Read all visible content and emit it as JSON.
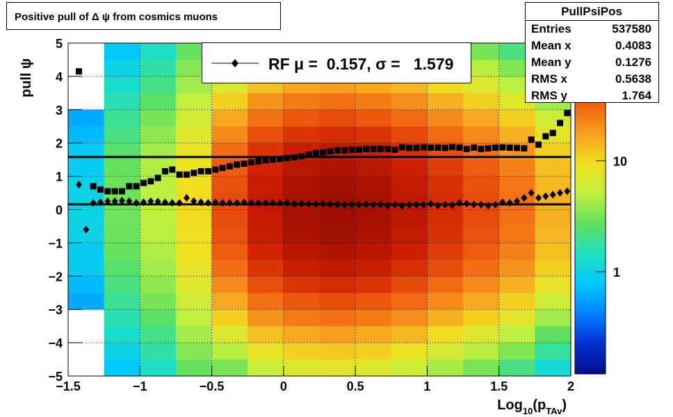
{
  "chart_data": {
    "type": "heatmap-profile",
    "title": "Positive pull of Δ ψ from cosmics muons",
    "y_label": "pull ψ",
    "x_label": {
      "base": "Log",
      "sub": "10",
      "mid": "(p",
      "sub2": "TAv",
      "end": ")"
    },
    "xlim": [
      -1.5,
      2
    ],
    "ylim": [
      -5,
      5
    ],
    "xticks": [
      {
        "value": -1.5,
        "label": "−1.5"
      },
      {
        "value": -1,
        "label": "−1"
      },
      {
        "value": -0.5,
        "label": "−0.5"
      },
      0,
      0.5,
      1,
      1.5,
      2
    ],
    "yticks": [
      {
        "value": -5,
        "label": "−5"
      },
      {
        "value": -4,
        "label": "−4"
      },
      {
        "value": -3,
        "label": "−3"
      },
      {
        "value": -2,
        "label": "−2"
      },
      {
        "value": -1,
        "label": "−1"
      },
      0,
      1,
      2,
      3,
      4,
      5
    ],
    "grid": true,
    "zlog": true,
    "zlim": [
      0.12,
      115
    ],
    "zticks": [
      1,
      10
    ],
    "palette": [
      "#0a0a8c",
      "#0030d0",
      "#0080ff",
      "#00c8ff",
      "#20e0c0",
      "#60e060",
      "#c0f040",
      "#f0e020",
      "#f8a020",
      "#f06010",
      "#d02000",
      "#8c0a00"
    ],
    "heatmap": {
      "xbins": [
        -1.5,
        -1.25,
        -1,
        -0.75,
        -0.5,
        -0.25,
        0,
        0.25,
        0.5,
        0.75,
        1,
        1.25,
        1.5,
        1.75,
        2
      ],
      "ybins": [
        -5,
        -4.5,
        -4,
        -3.5,
        -3,
        -2.5,
        -2,
        -1.5,
        -1,
        -0.5,
        0,
        0.5,
        1,
        1.5,
        2,
        2.5,
        3,
        3.5,
        4,
        4.5,
        5
      ],
      "z": [
        [
          0,
          0,
          0,
          0,
          0.6,
          0.7,
          0.9,
          0.9,
          1,
          1,
          1,
          1,
          0.9,
          0.9,
          0.7,
          0.6,
          0,
          0,
          0,
          0
        ],
        [
          0.8,
          1,
          1.3,
          1.6,
          1.9,
          2.2,
          2.5,
          2.8,
          2.9,
          3,
          3,
          2.9,
          2.8,
          2.5,
          2.2,
          1.9,
          1.6,
          1.3,
          1,
          0.8
        ],
        [
          1.4,
          1.7,
          2.1,
          2.6,
          3.2,
          3.7,
          4.2,
          4.6,
          4.9,
          5,
          5,
          4.9,
          4.6,
          4.2,
          3.7,
          3.2,
          2.6,
          2.1,
          1.7,
          1.4
        ],
        [
          2.8,
          3.5,
          4.2,
          5.3,
          6.3,
          7.4,
          8.5,
          9.2,
          9.7,
          10,
          10,
          9.7,
          9.2,
          8.5,
          7.4,
          6.3,
          5.3,
          4.2,
          3.5,
          2.8
        ],
        [
          3.2,
          4.8,
          7.2,
          11,
          16,
          22,
          29,
          34,
          38,
          40,
          40,
          38,
          34,
          29,
          22,
          16,
          11,
          7.2,
          4.8,
          3.2
        ],
        [
          5.6,
          8.4,
          13,
          20,
          28,
          39,
          50,
          60,
          67,
          70,
          70,
          67,
          60,
          50,
          39,
          28,
          20,
          13,
          8.4,
          5.6
        ],
        [
          7.2,
          11,
          16,
          25,
          36,
          50,
          65,
          77,
          86,
          90,
          90,
          86,
          77,
          65,
          50,
          36,
          25,
          16,
          11,
          7.2
        ],
        [
          8,
          12,
          18,
          28,
          40,
          55,
          72,
          85,
          95,
          100,
          100,
          95,
          85,
          72,
          55,
          40,
          28,
          18,
          12,
          8
        ],
        [
          7.2,
          11,
          16,
          25,
          36,
          50,
          65,
          77,
          86,
          90,
          90,
          86,
          77,
          65,
          50,
          36,
          25,
          16,
          11,
          7.2
        ],
        [
          6,
          9,
          14,
          21,
          30,
          41,
          54,
          64,
          71,
          75,
          75,
          71,
          64,
          54,
          41,
          30,
          21,
          14,
          9,
          6
        ],
        [
          4.4,
          6.6,
          9.9,
          15,
          22,
          30,
          40,
          47,
          52,
          55,
          55,
          52,
          47,
          40,
          30,
          22,
          15,
          9.9,
          6.6,
          4.4
        ],
        [
          3.2,
          4.8,
          7.2,
          11,
          16,
          22,
          29,
          34,
          38,
          40,
          40,
          38,
          34,
          29,
          22,
          16,
          11,
          7.2,
          4.8,
          3.2
        ],
        [
          2.2,
          3.4,
          5,
          7.8,
          11,
          15,
          20,
          24,
          27,
          28,
          28,
          27,
          24,
          20,
          15,
          11,
          7.8,
          5,
          3.4,
          2.2
        ],
        [
          1.2,
          1.8,
          2.7,
          4.2,
          6,
          8.3,
          11,
          13,
          14,
          15,
          15,
          14,
          13,
          11,
          8.3,
          6,
          4.2,
          2.7,
          1.8,
          1.2
        ]
      ]
    },
    "x": [
      -1.425,
      -1.375,
      -1.325,
      -1.275,
      -1.225,
      -1.175,
      -1.125,
      -1.075,
      -1.025,
      -0.975,
      -0.925,
      -0.875,
      -0.825,
      -0.775,
      -0.725,
      -0.675,
      -0.625,
      -0.575,
      -0.525,
      -0.475,
      -0.425,
      -0.375,
      -0.325,
      -0.275,
      -0.225,
      -0.175,
      -0.125,
      -0.075,
      -0.025,
      0.025,
      0.075,
      0.125,
      0.175,
      0.225,
      0.275,
      0.325,
      0.375,
      0.425,
      0.475,
      0.525,
      0.575,
      0.625,
      0.675,
      0.725,
      0.775,
      0.825,
      0.875,
      0.925,
      0.975,
      1.025,
      1.075,
      1.125,
      1.175,
      1.225,
      1.275,
      1.325,
      1.375,
      1.425,
      1.475,
      1.525,
      1.575,
      1.625,
      1.675,
      1.725,
      1.775,
      1.825,
      1.875,
      1.925,
      1.975
    ],
    "series": [
      {
        "marker": "square",
        "color": "#000000",
        "values": [
          4.15,
          null,
          0.7,
          0.6,
          0.55,
          0.55,
          0.55,
          0.7,
          0.7,
          0.8,
          0.85,
          0.95,
          1.15,
          1.2,
          1.05,
          1.05,
          1.1,
          1.15,
          1.15,
          1.2,
          1.25,
          1.3,
          1.35,
          1.38,
          1.42,
          1.45,
          1.48,
          1.5,
          1.52,
          1.55,
          1.57,
          1.6,
          1.65,
          1.7,
          1.72,
          1.75,
          1.78,
          1.78,
          1.8,
          1.8,
          1.82,
          1.82,
          1.82,
          1.82,
          1.8,
          1.87,
          1.85,
          1.85,
          1.87,
          1.86,
          1.86,
          1.85,
          1.88,
          1.86,
          1.82,
          1.86,
          1.82,
          1.84,
          1.86,
          1.87,
          1.86,
          1.85,
          1.84,
          2.1,
          1.95,
          2.2,
          2.3,
          2.6,
          2.9
        ]
      },
      {
        "marker": "diamond",
        "color": "#000000",
        "values": [
          0.75,
          -0.6,
          0.2,
          0.22,
          0.25,
          0.25,
          0.27,
          0.25,
          0.2,
          0.22,
          0.25,
          0.24,
          0.22,
          0.2,
          0.2,
          0.35,
          0.25,
          0.22,
          0.2,
          0.22,
          0.2,
          0.2,
          0.2,
          0.22,
          0.2,
          0.2,
          0.2,
          0.2,
          0.2,
          0.2,
          0.18,
          0.18,
          0.18,
          0.17,
          0.18,
          0.16,
          0.15,
          0.15,
          0.16,
          0.15,
          0.16,
          0.15,
          0.15,
          0.12,
          0.15,
          0.12,
          0.14,
          0.15,
          0.14,
          0.17,
          0.12,
          0.15,
          0.13,
          0.2,
          0.18,
          0.15,
          0.15,
          0.12,
          0.15,
          0.22,
          0.2,
          0.25,
          0.35,
          0.5,
          0.35,
          0.4,
          0.45,
          0.5,
          0.55
        ]
      }
    ],
    "legend": {
      "label_mu": "RF μ =  ",
      "mu": 0.157,
      "label_sigma": ", σ =   ",
      "sigma": 1.579
    },
    "stats": {
      "title": "PullPsiPos",
      "rows": [
        {
          "label": "Entries",
          "value": 537580
        },
        {
          "label": "Mean x",
          "value": 0.4083
        },
        {
          "label": "Mean y",
          "value": 0.1276
        },
        {
          "label": "RMS x",
          "value": 0.5638
        },
        {
          "label": "RMS y",
          "value": 1.764
        }
      ]
    }
  }
}
